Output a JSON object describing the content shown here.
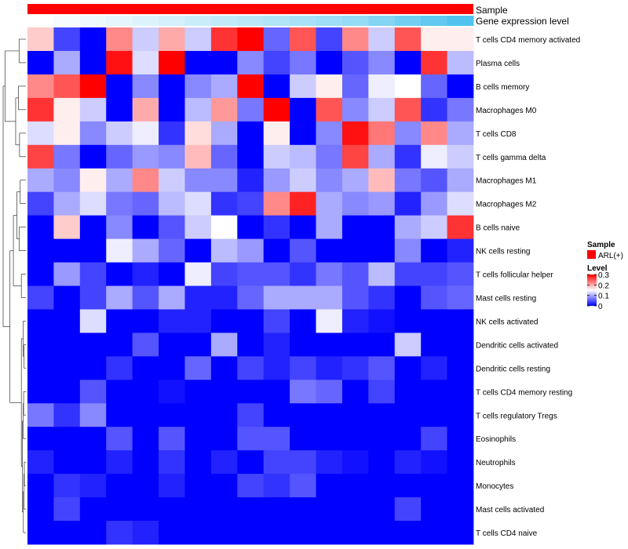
{
  "chart_data": {
    "type": "heatmap",
    "title": "",
    "annotations": [
      {
        "name": "Sample",
        "kind": "categorical",
        "value": "ARL(+)",
        "color": "#ff0000"
      },
      {
        "name": "Gene expression level",
        "kind": "gradient",
        "color_low": "#ffffff",
        "color_high": "#4fc3ee"
      }
    ],
    "columns": 17,
    "rows": [
      "T cells CD4 memory activated",
      "Plasma cells",
      "B cells memory",
      "Macrophages M0",
      "T cells CD8",
      "T cells gamma delta",
      "Macrophages M1",
      "Macrophages M2",
      "B cells naive",
      "NK cells resting",
      "T cells follicular helper",
      "Mast cells resting",
      "NK cells activated",
      "Dendritic cells activated",
      "Dendritic cells resting",
      "T cells CD4 memory resting",
      "T cells regulatory  Tregs",
      "Eosinophils",
      "Neutrophils",
      "Monocytes",
      "Mast cells activated",
      "T cells CD4 naive"
    ],
    "values": [
      [
        0.18,
        0.04,
        0.0,
        0.22,
        0.12,
        0.2,
        0.12,
        0.27,
        0.3,
        0.06,
        0.25,
        0.04,
        0.22,
        0.12,
        0.25,
        0.16,
        0.16
      ],
      [
        0.0,
        0.1,
        0.0,
        0.29,
        0.13,
        0.3,
        0.0,
        0.0,
        0.08,
        0.04,
        0.07,
        0.0,
        0.05,
        0.08,
        0.0,
        0.27,
        0.11
      ],
      [
        0.22,
        0.25,
        0.3,
        0.0,
        0.08,
        0.0,
        0.08,
        0.1,
        0.3,
        0.0,
        0.12,
        0.16,
        0.06,
        0.14,
        0.15,
        0.06,
        0.0
      ],
      [
        0.27,
        0.16,
        0.12,
        0.0,
        0.2,
        0.0,
        0.11,
        0.21,
        0.07,
        0.3,
        0.0,
        0.25,
        0.08,
        0.12,
        0.25,
        0.03,
        0.07
      ],
      [
        0.13,
        0.16,
        0.08,
        0.12,
        0.14,
        0.03,
        0.17,
        0.1,
        0.0,
        0.16,
        0.0,
        0.08,
        0.29,
        0.23,
        0.08,
        0.22,
        0.1
      ],
      [
        0.26,
        0.07,
        0.0,
        0.06,
        0.09,
        0.08,
        0.19,
        0.06,
        0.0,
        0.12,
        0.11,
        0.07,
        0.26,
        0.1,
        0.03,
        0.14,
        0.12
      ],
      [
        0.1,
        0.08,
        0.16,
        0.1,
        0.22,
        0.12,
        0.08,
        0.08,
        0.02,
        0.09,
        0.12,
        0.08,
        0.1,
        0.19,
        0.07,
        0.05,
        0.1
      ],
      [
        0.04,
        0.1,
        0.13,
        0.07,
        0.06,
        0.11,
        0.13,
        0.03,
        0.04,
        0.22,
        0.28,
        0.1,
        0.08,
        0.09,
        0.02,
        0.09,
        0.13
      ],
      [
        0.0,
        0.18,
        0.0,
        0.08,
        0.0,
        0.05,
        0.12,
        0.15,
        0.0,
        0.03,
        0.0,
        0.1,
        0.0,
        0.0,
        0.1,
        0.12,
        0.27
      ],
      [
        0.0,
        0.0,
        0.0,
        0.14,
        0.1,
        0.06,
        0.0,
        0.11,
        0.09,
        0.0,
        0.05,
        0.0,
        0.0,
        0.0,
        0.08,
        0.0,
        0.02
      ],
      [
        0.0,
        0.09,
        0.04,
        0.0,
        0.02,
        0.0,
        0.14,
        0.04,
        0.05,
        0.05,
        0.03,
        0.07,
        0.05,
        0.11,
        0.04,
        0.04,
        0.05
      ],
      [
        0.04,
        0.0,
        0.04,
        0.1,
        0.05,
        0.1,
        0.02,
        0.02,
        0.06,
        0.1,
        0.1,
        0.1,
        0.05,
        0.03,
        0.0,
        0.05,
        0.06
      ],
      [
        0.0,
        0.0,
        0.13,
        0.0,
        0.0,
        0.02,
        0.02,
        0.0,
        0.0,
        0.04,
        0.0,
        0.14,
        0.02,
        0.01,
        0.0,
        0.0,
        0.0
      ],
      [
        0.0,
        0.0,
        0.0,
        0.0,
        0.05,
        0.0,
        0.0,
        0.1,
        0.0,
        0.02,
        0.0,
        0.0,
        0.0,
        0.0,
        0.12,
        0.0,
        0.0
      ],
      [
        0.0,
        0.0,
        0.0,
        0.03,
        0.0,
        0.0,
        0.06,
        0.0,
        0.04,
        0.02,
        0.04,
        0.02,
        0.03,
        0.05,
        0.0,
        0.02,
        0.0
      ],
      [
        0.0,
        0.0,
        0.05,
        0.0,
        0.0,
        0.01,
        0.0,
        0.0,
        0.0,
        0.0,
        0.07,
        0.06,
        0.0,
        0.04,
        0.0,
        0.0,
        0.0
      ],
      [
        0.07,
        0.03,
        0.08,
        0.0,
        0.0,
        0.0,
        0.0,
        0.0,
        0.04,
        0.0,
        0.0,
        0.0,
        0.0,
        0.0,
        0.0,
        0.0,
        0.0
      ],
      [
        0.0,
        0.0,
        0.0,
        0.05,
        0.0,
        0.05,
        0.0,
        0.0,
        0.05,
        0.05,
        0.0,
        0.0,
        0.0,
        0.0,
        0.0,
        0.04,
        0.0
      ],
      [
        0.02,
        0.0,
        0.0,
        0.02,
        0.0,
        0.03,
        0.0,
        0.02,
        0.0,
        0.04,
        0.04,
        0.02,
        0.01,
        0.0,
        0.02,
        0.01,
        0.0
      ],
      [
        0.0,
        0.03,
        0.02,
        0.0,
        0.0,
        0.02,
        0.0,
        0.0,
        0.04,
        0.03,
        0.05,
        0.0,
        0.0,
        0.0,
        0.0,
        0.0,
        0.0
      ],
      [
        0.0,
        0.04,
        0.0,
        0.0,
        0.0,
        0.0,
        0.0,
        0.0,
        0.0,
        0.0,
        0.0,
        0.0,
        0.0,
        0.0,
        0.04,
        0.0,
        0.0
      ],
      [
        0.0,
        0.0,
        0.0,
        0.03,
        0.02,
        0.0,
        0.0,
        0.0,
        0.0,
        0.0,
        0.0,
        0.0,
        0.0,
        0.0,
        0.0,
        0.0,
        0.0
      ]
    ],
    "gene_expression_level": [
      0.0,
      0.05,
      0.1,
      0.15,
      0.2,
      0.25,
      0.3,
      0.35,
      0.4,
      0.45,
      0.5,
      0.55,
      0.6,
      0.7,
      0.8,
      0.9,
      1.0
    ],
    "color_scale": {
      "min": 0,
      "mid": 0.15,
      "max": 0.3,
      "low": "#0000ff",
      "mid_color": "#ffffff",
      "high": "#ff0000"
    },
    "legend": {
      "position": "right",
      "sample_title": "Sample",
      "sample_label": "ARL(+)",
      "level_title": "Level",
      "level_ticks": [
        0.3,
        0.2,
        0.1,
        0
      ],
      "level_tick_labels": [
        "0.3",
        "0.2",
        "0.1",
        "0"
      ]
    },
    "row_dendrogram": true
  }
}
